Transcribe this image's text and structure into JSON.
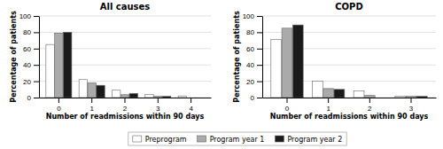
{
  "chart_data": [
    {
      "type": "bar",
      "title": "All causes",
      "xlabel": "Number of readmissions within 90 days",
      "ylabel": "Percentage of patients",
      "categories": [
        "0",
        "1",
        "2",
        "3",
        "4"
      ],
      "series": [
        {
          "name": "Preprogram",
          "color": "#ffffff",
          "values": [
            65,
            22,
            9,
            4,
            2
          ]
        },
        {
          "name": "Program year 1",
          "color": "#aaaaaa",
          "values": [
            79,
            18,
            3.5,
            1.5,
            0
          ]
        },
        {
          "name": "Program year 2",
          "color": "#1a1a1a",
          "values": [
            80,
            15,
            5,
            1.5,
            0
          ]
        }
      ],
      "ylim": [
        0,
        100
      ],
      "yticks": [
        0,
        20,
        40,
        60,
        80,
        100
      ],
      "grid": true,
      "legend": "bottom"
    },
    {
      "type": "bar",
      "title": "COPD",
      "xlabel": "Number of readmissions within 90 days",
      "ylabel": "Percentage of patients",
      "categories": [
        "0",
        "1",
        "2",
        "3"
      ],
      "series": [
        {
          "name": "Preprogram",
          "color": "#ffffff",
          "values": [
            71,
            20,
            8,
            1.5
          ]
        },
        {
          "name": "Program year 1",
          "color": "#aaaaaa",
          "values": [
            85,
            11,
            2.5,
            1.5
          ]
        },
        {
          "name": "Program year 2",
          "color": "#1a1a1a",
          "values": [
            89,
            10,
            0,
            1.5
          ]
        }
      ],
      "ylim": [
        0,
        100
      ],
      "yticks": [
        0,
        20,
        40,
        60,
        80,
        100
      ],
      "grid": true
    }
  ]
}
